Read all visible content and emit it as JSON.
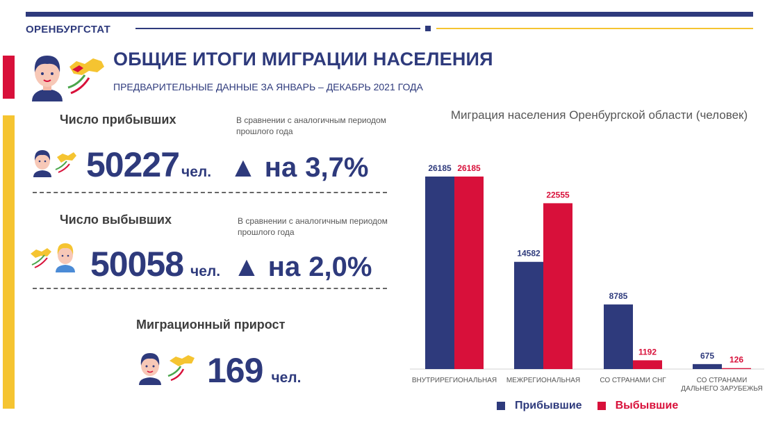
{
  "header": {
    "org": "ОРЕНБУРГСТАТ",
    "title": "ОБЩИЕ ИТОГИ МИГРАЦИИ НАСЕЛЕНИЯ",
    "subtitle": "ПРЕДВАРИТЕЛЬНЫЕ ДАННЫЕ ЗА ЯНВАРЬ – ДЕКАБРЬ 2021 ГОДА"
  },
  "arrivals": {
    "label": "Число прибывших",
    "comparison": "В сравнении с аналогичным периодом прошлого года",
    "value": "50227",
    "unit": "чел.",
    "change_prefix": "▲ на",
    "change_int": "3",
    "change_dec": ",7%"
  },
  "departures": {
    "label": "Число выбывших",
    "comparison": "В сравнении с аналогичным периодом прошлого года",
    "value": "50058",
    "unit": "чел.",
    "change_prefix": "▲ на",
    "change_int": "2",
    "change_dec": ",0%"
  },
  "growth": {
    "label": "Миграционный прирост",
    "value": "169",
    "unit": "чел."
  },
  "colors": {
    "navy": "#2e3a7c",
    "red": "#d8103a",
    "yellow": "#f5c431"
  },
  "chart_data": {
    "type": "bar",
    "title": "Миграция населения Оренбургской области (человек)",
    "categories": [
      "ВНУТРИРЕГИОНАЛЬНАЯ",
      "МЕЖРЕГИОНАЛЬНАЯ",
      "СО СТРАНАМИ СНГ",
      "СО СТРАНАМИ ДАЛЬНЕГО ЗАРУБЕЖЬЯ"
    ],
    "series": [
      {
        "name": "Прибывшие",
        "values": [
          26185,
          14582,
          8785,
          675
        ],
        "color": "#2e3a7c"
      },
      {
        "name": "Выбывшие",
        "values": [
          26185,
          22555,
          1192,
          126
        ],
        "color": "#d8103a"
      }
    ],
    "ylim": [
      0,
      26185
    ],
    "grid": false,
    "legend": "bottom"
  }
}
